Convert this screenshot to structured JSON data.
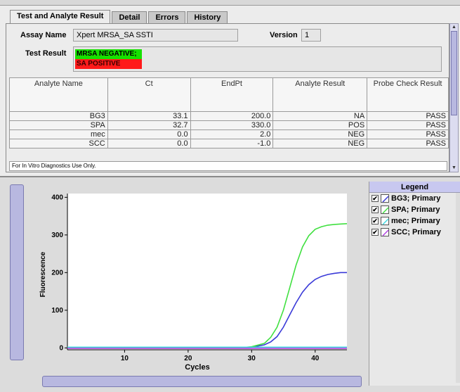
{
  "tabs": [
    {
      "label": "Test and Analyte Result",
      "active": true
    },
    {
      "label": "Detail",
      "active": false
    },
    {
      "label": "Errors",
      "active": false
    },
    {
      "label": "History",
      "active": false
    }
  ],
  "assay": {
    "label": "Assay Name",
    "value": "Xpert MRSA_SA SSTI"
  },
  "version": {
    "label": "Version",
    "value": "1"
  },
  "test_result": {
    "label": "Test Result",
    "negative": "MRSA NEGATIVE;",
    "positive": "SA POSITIVE",
    "negative_color": "#17e000",
    "positive_color": "#ff1a1a"
  },
  "table": {
    "headers": [
      "Analyte Name",
      "Ct",
      "EndPt",
      "Analyte Result",
      "Probe Check Result"
    ],
    "rows": [
      [
        "BG3",
        "33.1",
        "200.0",
        "NA",
        "PASS"
      ],
      [
        "SPA",
        "32.7",
        "330.0",
        "POS",
        "PASS"
      ],
      [
        "mec",
        "0.0",
        "2.0",
        "NEG",
        "PASS"
      ],
      [
        "SCC",
        "0.0",
        "-1.0",
        "NEG",
        "PASS"
      ]
    ]
  },
  "footer_note": "For In Vitro Diagnostics Use Only.",
  "legend": {
    "title": "Legend",
    "items": [
      {
        "label": "BG3; Primary",
        "color": "#3a3ad8",
        "checked": true
      },
      {
        "label": "SPA; Primary",
        "color": "#40e040",
        "checked": true
      },
      {
        "label": "mec; Primary",
        "color": "#40d8e0",
        "checked": true
      },
      {
        "label": "SCC; Primary",
        "color": "#b040e0",
        "checked": true
      }
    ]
  },
  "chart_data": {
    "type": "line",
    "xlabel": "Cycles",
    "ylabel": "Fluorescence",
    "xlim": [
      1,
      45
    ],
    "ylim": [
      -5,
      410
    ],
    "xticks": [
      10,
      20,
      30,
      40
    ],
    "yticks": [
      0,
      100,
      200,
      300,
      400
    ],
    "series": [
      {
        "name": "BG3; Primary",
        "color": "#3a3ad8",
        "x": [
          1,
          28,
          30,
          32,
          33,
          34,
          35,
          36,
          37,
          38,
          39,
          40,
          41,
          42,
          43,
          44,
          45
        ],
        "y": [
          0,
          0,
          2,
          8,
          16,
          30,
          55,
          88,
          120,
          148,
          168,
          182,
          190,
          195,
          198,
          200,
          200
        ]
      },
      {
        "name": "SPA; Primary",
        "color": "#40e040",
        "x": [
          1,
          28,
          30,
          32,
          33,
          34,
          35,
          36,
          37,
          38,
          39,
          40,
          41,
          42,
          43,
          44,
          45
        ],
        "y": [
          0,
          0,
          3,
          12,
          28,
          55,
          100,
          160,
          220,
          268,
          298,
          315,
          322,
          326,
          328,
          329,
          330
        ]
      },
      {
        "name": "mec; Primary",
        "color": "#40d8e0",
        "x": [
          1,
          45
        ],
        "y": [
          2,
          2
        ]
      },
      {
        "name": "SCC; Primary",
        "color": "#b040e0",
        "x": [
          1,
          45
        ],
        "y": [
          -1,
          -1
        ]
      }
    ]
  }
}
